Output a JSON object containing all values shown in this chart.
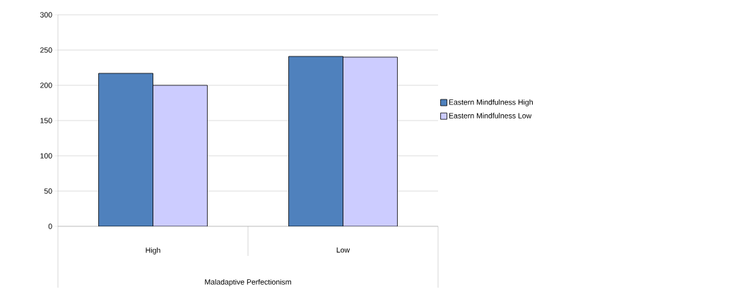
{
  "chart_data": {
    "type": "bar",
    "xlabel": "Maladaptive Perfectionism",
    "categories": [
      "High",
      "Low"
    ],
    "series": [
      {
        "name": "Eastern Mindfulness High",
        "color": "#4f81bd",
        "values": [
          217,
          241
        ]
      },
      {
        "name": "Eastern Mindfulness Low",
        "color": "#ccccff",
        "values": [
          200,
          240
        ]
      }
    ],
    "ylim": [
      0,
      300
    ],
    "yticks": [
      0,
      50,
      100,
      150,
      200,
      250,
      300
    ],
    "grid": "y",
    "legend": "right"
  }
}
